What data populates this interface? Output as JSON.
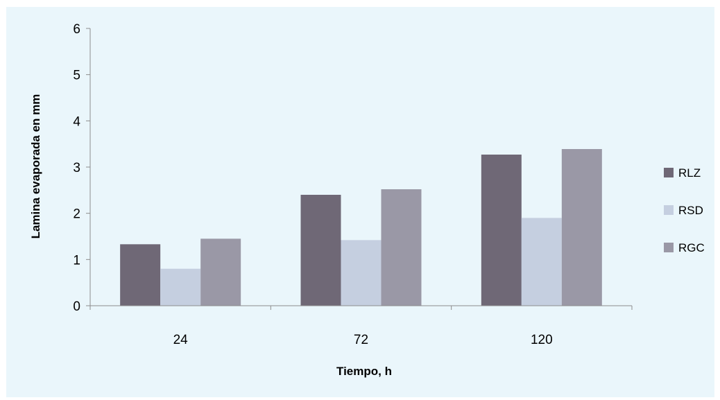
{
  "chart_data": {
    "type": "bar",
    "categories": [
      "24",
      "72",
      "120"
    ],
    "series": [
      {
        "name": "RLZ",
        "values": [
          1.33,
          2.4,
          3.27
        ],
        "color": "#6f6876"
      },
      {
        "name": "RSD",
        "values": [
          0.8,
          1.42,
          1.9
        ],
        "color": "#c5cfe0"
      },
      {
        "name": "RGC",
        "values": [
          1.45,
          2.52,
          3.39
        ],
        "color": "#9a98a6"
      }
    ],
    "xlabel": "Tiempo, h",
    "ylabel": "Lamina evaporada  en mm",
    "ylim": [
      0,
      6
    ],
    "yticks": [
      "0",
      "1",
      "2",
      "3",
      "4",
      "5",
      "6"
    ],
    "grid": false,
    "legend_position": "right",
    "background_color": "#eaf6fb"
  }
}
